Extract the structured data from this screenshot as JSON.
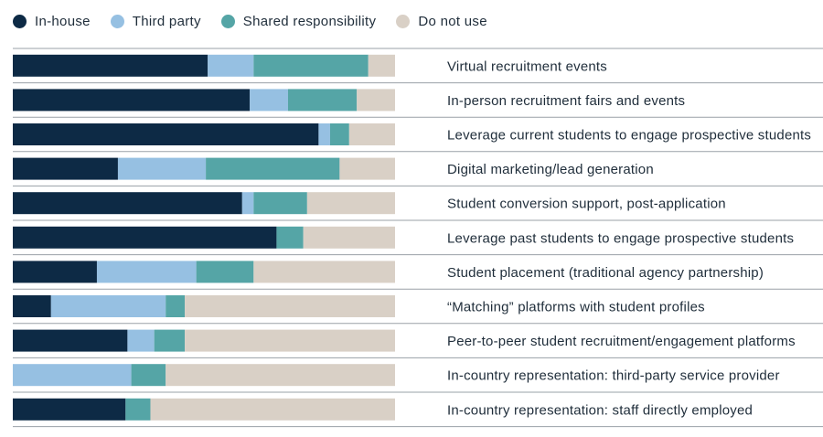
{
  "chart_data": {
    "type": "bar",
    "orientation": "horizontal",
    "stacked": true,
    "legend_position": "top-left",
    "grid": false,
    "xlim": [
      0,
      100
    ],
    "series": [
      {
        "name": "In-house",
        "color": "#0d2a45",
        "values": [
          51,
          62,
          80,
          27.5,
          60,
          69,
          22,
          10,
          30,
          0,
          29.5
        ]
      },
      {
        "name": "Third party",
        "color": "#96c0e2",
        "values": [
          12,
          10,
          3,
          23,
          3,
          0,
          26,
          30,
          7,
          31,
          0
        ]
      },
      {
        "name": "Shared responsibility",
        "color": "#55a5a6",
        "values": [
          30,
          18,
          5,
          35,
          14,
          7,
          15,
          5,
          8,
          9,
          6.5
        ]
      },
      {
        "name": "Do not use",
        "color": "#d9d0c6",
        "values": [
          7,
          10,
          12,
          14.5,
          23,
          24,
          37,
          55,
          55,
          60,
          64
        ]
      }
    ],
    "categories": [
      "Virtual recruitment events",
      "In-person recruitment fairs and events",
      "Leverage current students to engage prospective students",
      "Digital marketing/lead generation",
      "Student conversion support, post-application",
      "Leverage past students to engage prospective students",
      "Student placement (traditional agency partnership)",
      "“Matching” platforms with student profiles",
      "Peer-to-peer student recruitment/engagement platforms",
      "In-country representation: third-party service provider",
      "In-country representation: staff directly employed"
    ]
  }
}
